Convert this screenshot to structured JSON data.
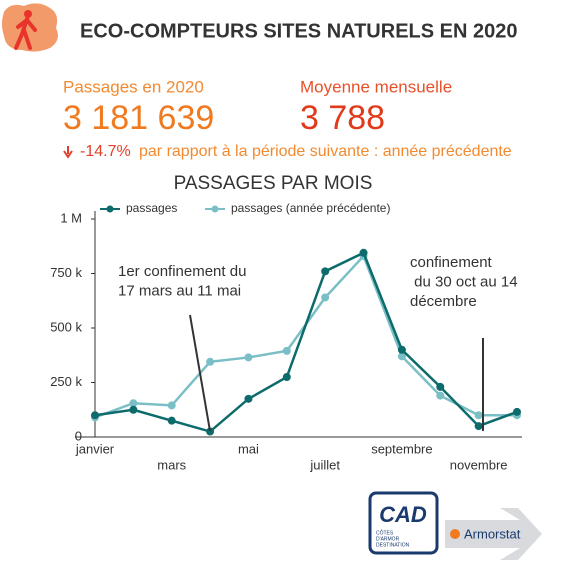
{
  "header": {
    "title": "ECO-COMPTEURS SITES NATURELS EN 2020"
  },
  "kpis": [
    {
      "label": "Passages en 2020",
      "value": "3 181 639"
    },
    {
      "label": "Moyenne mensuelle",
      "value": "3 788"
    }
  ],
  "change": {
    "value": "-14.7%",
    "text": "par rapport à la période suivante : année précédente"
  },
  "chart_data": {
    "type": "line",
    "title": "PASSAGES PAR MOIS",
    "categories": [
      "janvier",
      null,
      "mars",
      null,
      "mai",
      null,
      "juillet",
      null,
      "septembre",
      null,
      "novembre",
      null
    ],
    "series": [
      {
        "name": "passages",
        "color": "#0e6b6b",
        "values": [
          100000,
          125000,
          75000,
          25000,
          175000,
          275000,
          760000,
          845000,
          400000,
          230000,
          50000,
          115000
        ]
      },
      {
        "name": "passages (année précédente)",
        "color": "#7bbfc6",
        "values": [
          90000,
          155000,
          145000,
          345000,
          365000,
          395000,
          640000,
          830000,
          370000,
          190000,
          100000,
          100000
        ]
      }
    ],
    "ylim": [
      0,
      1000000
    ],
    "yticks": [
      0,
      {
        "value": 250000,
        "label": "250 k"
      },
      {
        "value": 500000,
        "label": "500 k"
      },
      {
        "value": 750000,
        "label": "750 k"
      },
      {
        "value": 1000000,
        "label": "1 M"
      }
    ],
    "annotations": [
      {
        "lines": [
          "1er confinement du",
          "17 mars au 11 mai"
        ]
      },
      {
        "lines": [
          "confinement",
          " du 30 oct au 14",
          "décembre"
        ]
      }
    ]
  },
  "logos": {
    "cad": "CAD",
    "cad_lines": [
      "CÔTES",
      "D'ARMOR",
      "DESTINATION"
    ],
    "armorstat": "Armorstat"
  }
}
